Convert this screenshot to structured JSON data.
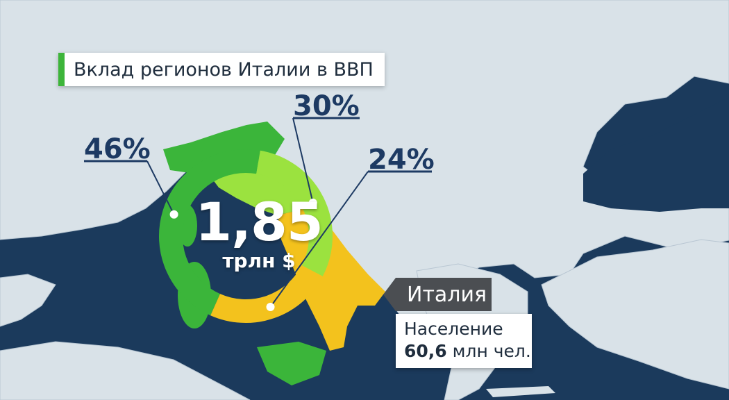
{
  "title": "Вклад регионов Италии в ВВП",
  "center": {
    "value": "1,85",
    "unit": "трлн $"
  },
  "chart_data": {
    "type": "pie",
    "title": "Вклад регионов Италии в ВВП",
    "segments": [
      {
        "label": "46%",
        "value": 46,
        "color": "#3bb53a"
      },
      {
        "label": "30%",
        "value": 30,
        "color": "#9be23f"
      },
      {
        "label": "24%",
        "value": 24,
        "color": "#f3c21d"
      }
    ]
  },
  "country": {
    "name": "Италия",
    "population_label": "Население",
    "population_value": "60,6",
    "population_unit": "млн чел."
  },
  "colors": {
    "sea": "#1b3a5c",
    "land": "#d9e2e8",
    "title_accent": "#3db53a",
    "label_color": "#1d3a63"
  }
}
